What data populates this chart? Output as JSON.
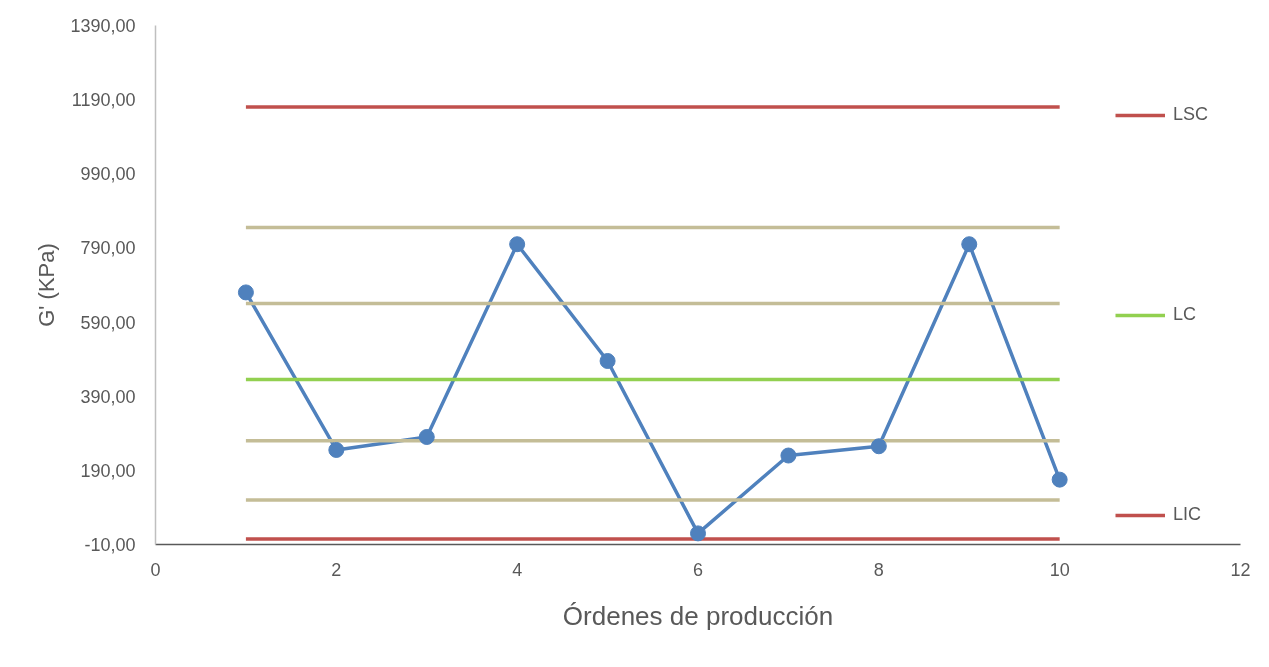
{
  "chart_data": {
    "type": "line",
    "xlabel": "Órdenes de producción",
    "ylabel": "G' (KPa)",
    "x": [
      1,
      2,
      3,
      4,
      5,
      6,
      7,
      8,
      9,
      10
    ],
    "xlim": [
      0,
      12
    ],
    "xticks": [
      0,
      2,
      4,
      6,
      8,
      10,
      12
    ],
    "ylim": [
      -10,
      1390
    ],
    "yticks": [
      {
        "value": -10,
        "label": "-10,00"
      },
      {
        "value": 190,
        "label": "190,00"
      },
      {
        "value": 390,
        "label": "390,00"
      },
      {
        "value": 590,
        "label": "590,00"
      },
      {
        "value": 790,
        "label": "790,00"
      },
      {
        "value": 990,
        "label": "990,00"
      },
      {
        "value": 1190,
        "label": "1190,00"
      },
      {
        "value": 1390,
        "label": "1390,00"
      }
    ],
    "marker": "circle",
    "legend": "right",
    "series": [
      {
        "color": "#4f81bd",
        "values": [
          670,
          245,
          280,
          800,
          485,
          20,
          230,
          255,
          800,
          165
        ]
      },
      {
        "name": "LSC",
        "color": "#c0504d",
        "values": [
          1170,
          1170,
          1170,
          1170,
          1170,
          1170,
          1170,
          1170,
          1170,
          1170
        ],
        "marker": "none"
      },
      {
        "color": "#c4bd97",
        "values": [
          845,
          845,
          845,
          845,
          845,
          845,
          845,
          845,
          845,
          845
        ],
        "marker": "none"
      },
      {
        "color": "#c4bd97",
        "values": [
          640,
          640,
          640,
          640,
          640,
          640,
          640,
          640,
          640,
          640
        ],
        "marker": "none"
      },
      {
        "name": "LC",
        "color": "#92d050",
        "values": [
          435,
          435,
          435,
          435,
          435,
          435,
          435,
          435,
          435,
          435
        ],
        "marker": "none"
      },
      {
        "color": "#c4bd97",
        "values": [
          270,
          270,
          270,
          270,
          270,
          270,
          270,
          270,
          270,
          270
        ],
        "marker": "none"
      },
      {
        "color": "#c4bd97",
        "values": [
          110,
          110,
          110,
          110,
          110,
          110,
          110,
          110,
          110,
          110
        ],
        "marker": "none"
      },
      {
        "name": "LIC",
        "color": "#c0504d",
        "values": [
          5,
          5,
          5,
          5,
          5,
          5,
          5,
          5,
          5,
          5
        ],
        "marker": "none"
      }
    ]
  }
}
